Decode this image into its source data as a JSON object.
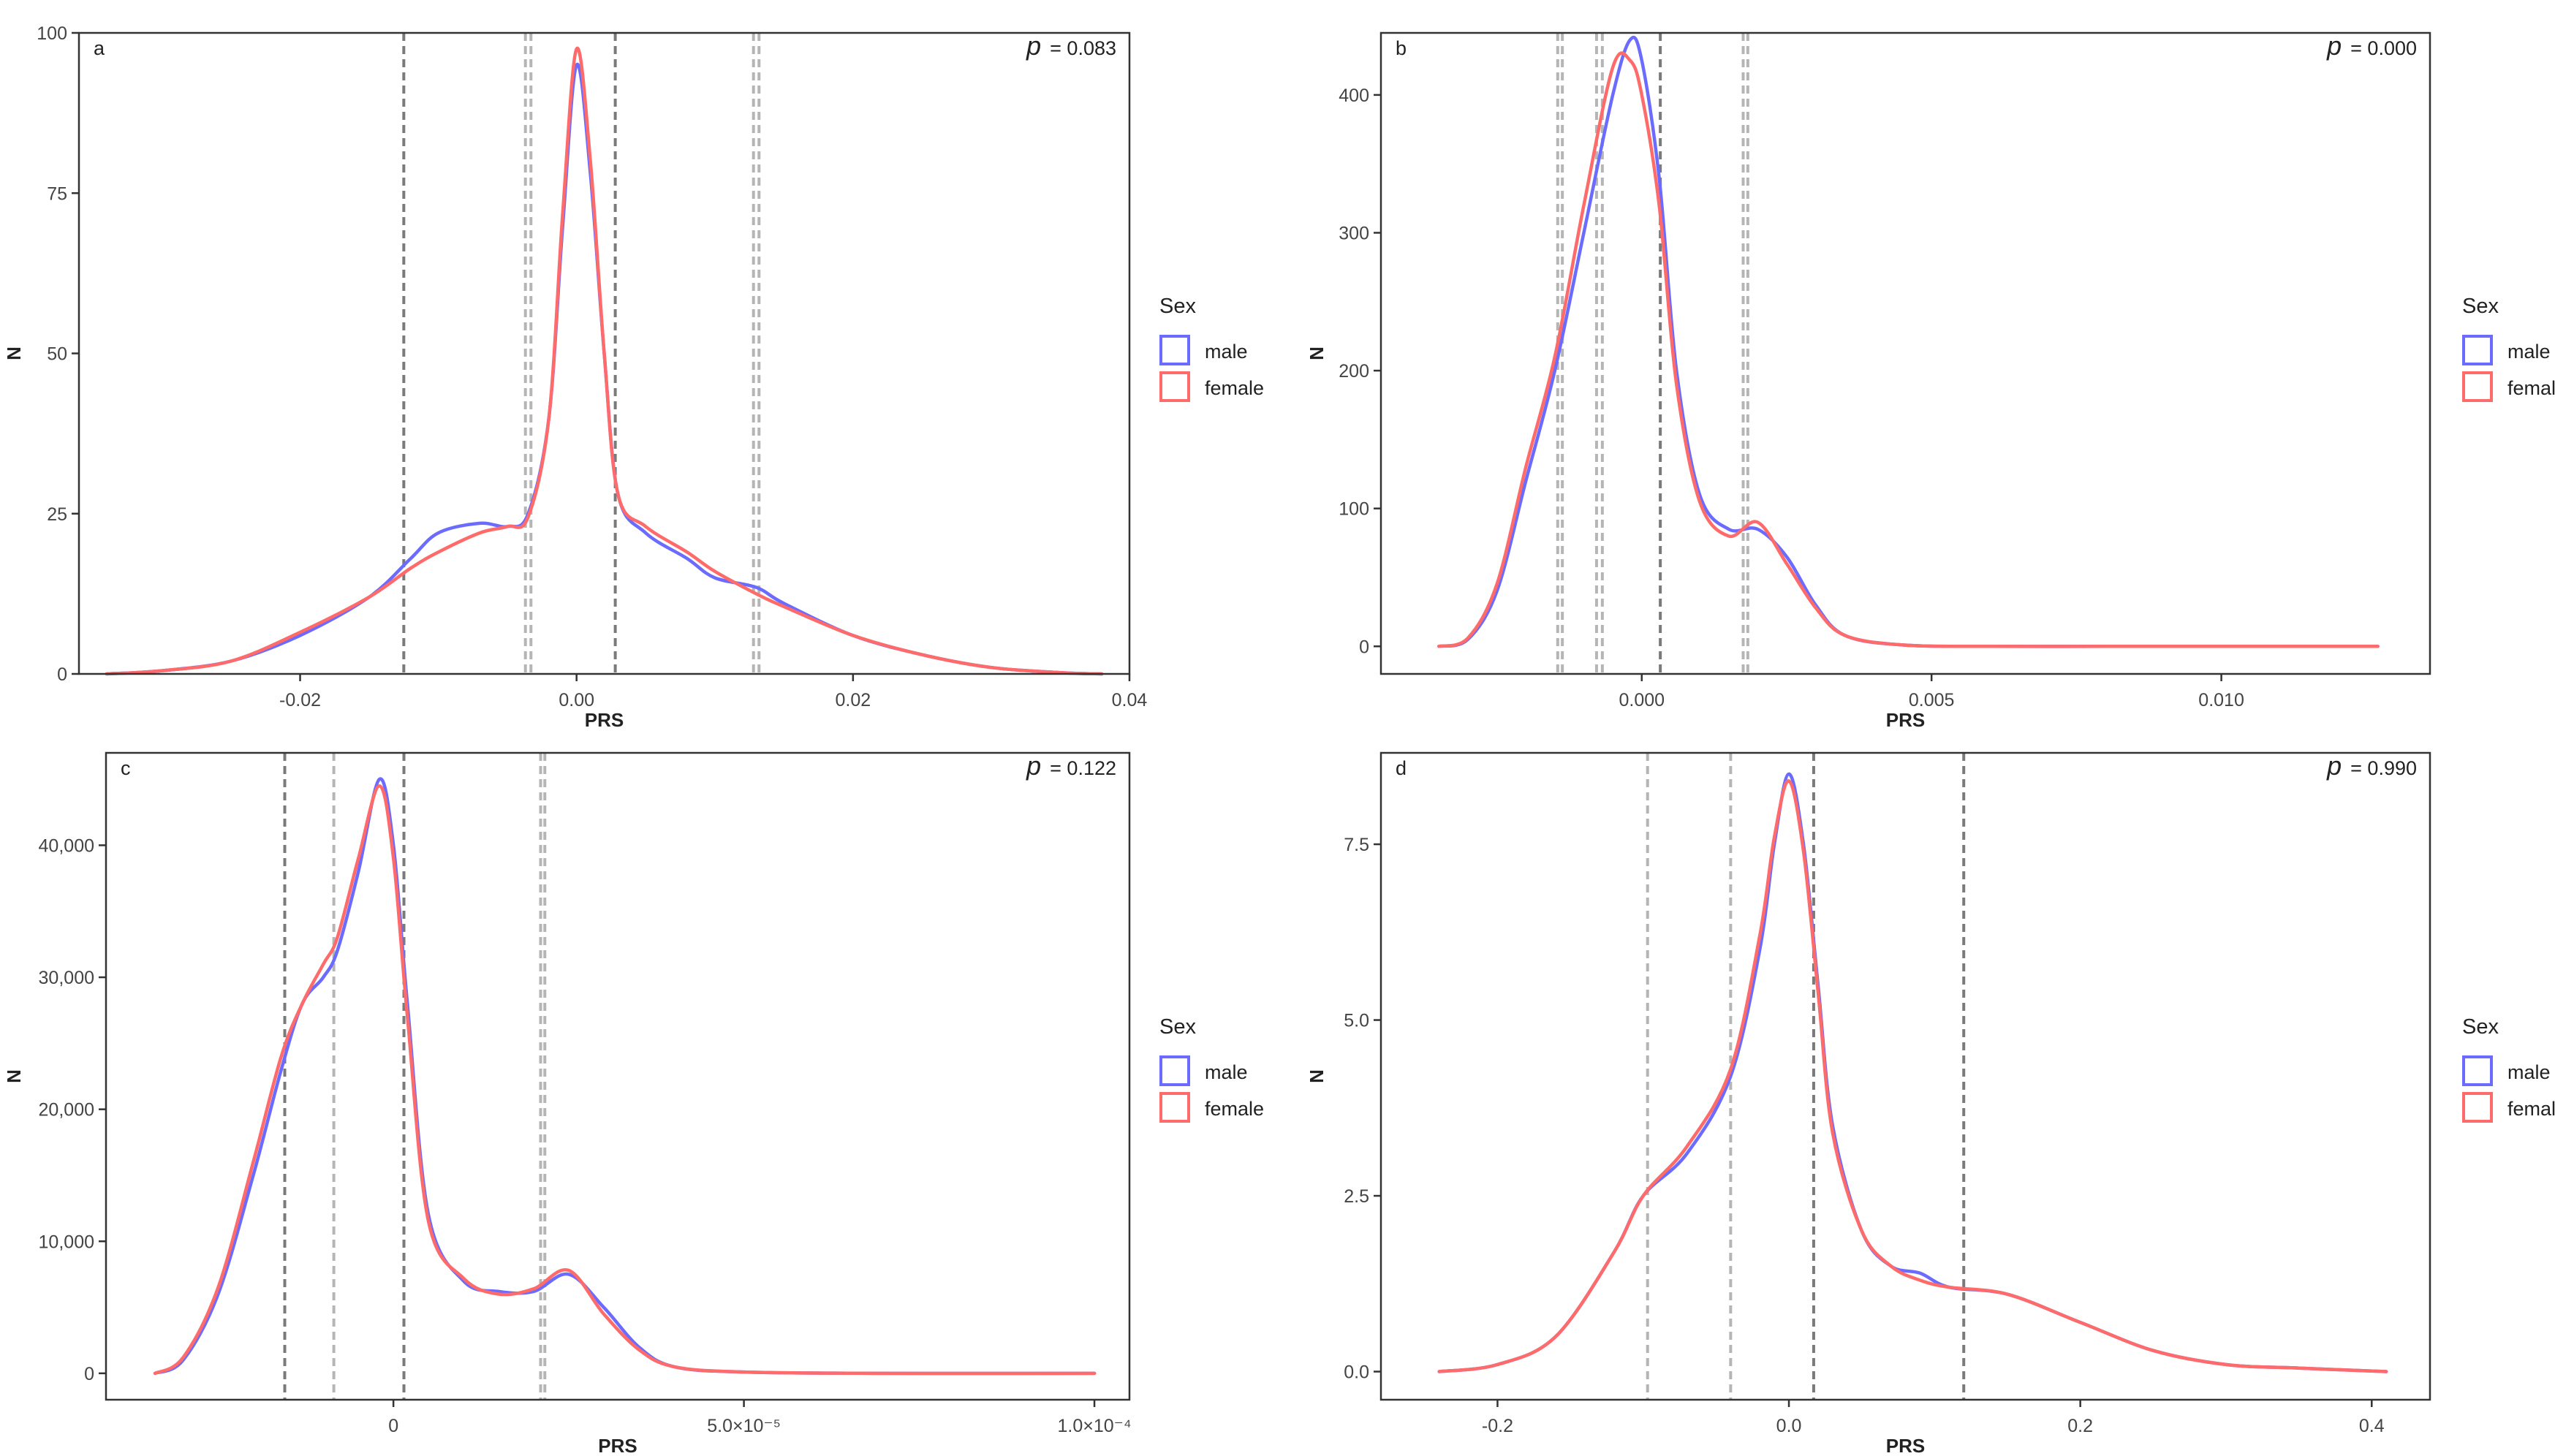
{
  "chart_data": [
    {
      "panel": "a",
      "type": "line",
      "p_label": "p",
      "p_value": "= 0.083",
      "xlabel": "PRS",
      "ylabel": "N",
      "xlim": [
        -0.036,
        0.04
      ],
      "ylim": [
        0,
        100
      ],
      "xticks": [
        -0.02,
        0.0,
        0.02,
        0.04
      ],
      "xtick_labels": [
        "-0.02",
        "0.00",
        "0.02",
        "0.04"
      ],
      "yticks": [
        0,
        25,
        50,
        75,
        100
      ],
      "ytick_labels": [
        "0",
        "25",
        "50",
        "75",
        "100"
      ],
      "vlines": [
        {
          "x": -0.0125,
          "style": "dark"
        },
        {
          "x": -0.0037,
          "style": "light"
        },
        {
          "x": -0.0033,
          "style": "light"
        },
        {
          "x": 0.0028,
          "style": "dark"
        },
        {
          "x": 0.0128,
          "style": "light"
        },
        {
          "x": 0.0132,
          "style": "light"
        }
      ],
      "series": [
        {
          "name": "male",
          "color": "#6b6bff",
          "x": [
            -0.034,
            -0.03,
            -0.025,
            -0.02,
            -0.015,
            -0.012,
            -0.01,
            -0.007,
            -0.005,
            -0.0035,
            -0.002,
            -0.001,
            0.0,
            0.001,
            0.002,
            0.003,
            0.005,
            0.008,
            0.01,
            0.013,
            0.015,
            0.02,
            0.025,
            0.03,
            0.035,
            0.038
          ],
          "y": [
            0,
            0.5,
            2,
            6,
            12,
            18,
            22,
            23.5,
            23,
            25,
            40,
            70,
            95,
            78,
            50,
            28,
            22,
            18,
            15,
            13.5,
            11,
            6,
            3,
            1,
            0.2,
            0
          ]
        },
        {
          "name": "female",
          "color": "#ff6b6b",
          "x": [
            -0.034,
            -0.03,
            -0.025,
            -0.02,
            -0.015,
            -0.012,
            -0.01,
            -0.007,
            -0.005,
            -0.0035,
            -0.002,
            -0.001,
            0.0,
            0.001,
            0.002,
            0.003,
            0.005,
            0.008,
            0.01,
            0.013,
            0.015,
            0.02,
            0.025,
            0.03,
            0.035,
            0.038
          ],
          "y": [
            0,
            0.5,
            2,
            6.5,
            12,
            16.5,
            19,
            22,
            23,
            24.5,
            40,
            72,
            97.5,
            80,
            50,
            28,
            23,
            19,
            16,
            12.5,
            10.5,
            6,
            3,
            1,
            0.2,
            0
          ]
        }
      ],
      "legend": {
        "title": "Sex",
        "entries": [
          "male",
          "female"
        ],
        "placement": "right"
      }
    },
    {
      "panel": "b",
      "type": "line",
      "p_label": "p",
      "p_value": "= 0.000",
      "xlabel": "PRS",
      "ylabel": "N",
      "xlim": [
        -0.0045,
        0.0136
      ],
      "ylim": [
        -20,
        445
      ],
      "xticks": [
        0.0,
        0.005,
        0.01
      ],
      "xtick_labels": [
        "0.000",
        "0.005",
        "0.010"
      ],
      "yticks": [
        0,
        100,
        200,
        300,
        400
      ],
      "ytick_labels": [
        "0",
        "100",
        "200",
        "300",
        "400"
      ],
      "vlines": [
        {
          "x": -0.00145,
          "style": "light"
        },
        {
          "x": -0.00137,
          "style": "light"
        },
        {
          "x": -0.00078,
          "style": "light"
        },
        {
          "x": -0.00068,
          "style": "light"
        },
        {
          "x": 0.00032,
          "style": "dark"
        },
        {
          "x": 0.00175,
          "style": "light"
        },
        {
          "x": 0.00183,
          "style": "light"
        }
      ],
      "series": [
        {
          "name": "male",
          "color": "#6b6bff",
          "x": [
            -0.0035,
            -0.003,
            -0.0025,
            -0.002,
            -0.0015,
            -0.001,
            -0.0005,
            -0.0002,
            0.0,
            0.0003,
            0.0006,
            0.001,
            0.0015,
            0.002,
            0.0025,
            0.003,
            0.0035,
            0.0045,
            0.006,
            0.008,
            0.01,
            0.0127
          ],
          "y": [
            0,
            5,
            40,
            120,
            200,
            300,
            400,
            440,
            425,
            340,
            200,
            110,
            85,
            85,
            65,
            30,
            8,
            1,
            0,
            0,
            0,
            0
          ]
        },
        {
          "name": "female",
          "color": "#ff6b6b",
          "x": [
            -0.0035,
            -0.003,
            -0.0025,
            -0.002,
            -0.0015,
            -0.001,
            -0.0005,
            -0.0002,
            0.0,
            0.0003,
            0.0006,
            0.001,
            0.0015,
            0.002,
            0.0025,
            0.003,
            0.0035,
            0.0045,
            0.006,
            0.008,
            0.01,
            0.0127
          ],
          "y": [
            0,
            6,
            45,
            130,
            210,
            320,
            420,
            425,
            400,
            320,
            190,
            105,
            80,
            90,
            60,
            28,
            8,
            1,
            0,
            0,
            0,
            0
          ]
        }
      ],
      "legend": {
        "title": "Sex",
        "entries": [
          "male",
          "female"
        ],
        "placement": "right"
      }
    },
    {
      "panel": "c",
      "type": "line",
      "p_label": "p",
      "p_value": "= 0.122",
      "xlabel": "PRS",
      "ylabel": "N",
      "xlim": [
        -4.1e-05,
        0.000105
      ],
      "ylim": [
        -2000,
        47000
      ],
      "xticks": [
        0,
        5e-05,
        0.0001
      ],
      "xtick_labels": [
        "0",
        "5.0×10⁻⁵",
        "1.0×10⁻⁴"
      ],
      "yticks": [
        0,
        10000,
        20000,
        30000,
        40000
      ],
      "ytick_labels": [
        "0",
        "10,000",
        "20,000",
        "30,000",
        "40,000"
      ],
      "vlines": [
        {
          "x": -1.55e-05,
          "style": "dark"
        },
        {
          "x": -8.5e-06,
          "style": "light"
        },
        {
          "x": 1.5e-06,
          "style": "dark"
        },
        {
          "x": 2.1e-05,
          "style": "light"
        },
        {
          "x": 2.16e-05,
          "style": "light"
        }
      ],
      "series": [
        {
          "name": "male",
          "color": "#6b6bff",
          "x": [
            -3.4e-05,
            -3e-05,
            -2.5e-05,
            -2e-05,
            -1.6e-05,
            -1.3e-05,
            -1e-05,
            -8e-06,
            -5e-06,
            -2e-06,
            0.0,
            2e-06,
            5e-06,
            1e-05,
            1.5e-05,
            2e-05,
            2.5e-05,
            3e-05,
            3.5e-05,
            4e-05,
            5e-05,
            7e-05,
            0.0001
          ],
          "y": [
            0,
            1000,
            6000,
            15000,
            23000,
            28000,
            30000,
            32000,
            38000,
            45000,
            40000,
            28000,
            12000,
            7000,
            6200,
            6200,
            7500,
            5000,
            2000,
            500,
            100,
            0,
            0
          ]
        },
        {
          "name": "female",
          "color": "#ff6b6b",
          "x": [
            -3.4e-05,
            -3e-05,
            -2.5e-05,
            -2e-05,
            -1.6e-05,
            -1.3e-05,
            -1e-05,
            -8e-06,
            -5e-06,
            -2e-06,
            0.0,
            2e-06,
            5e-06,
            1e-05,
            1.5e-05,
            2e-05,
            2.5e-05,
            3e-05,
            3.5e-05,
            4e-05,
            5e-05,
            7e-05,
            0.0001
          ],
          "y": [
            0,
            1200,
            6500,
            16000,
            24000,
            28000,
            31000,
            33000,
            39000,
            44500,
            39000,
            27000,
            11500,
            7200,
            6000,
            6400,
            7800,
            4500,
            1800,
            500,
            100,
            0,
            0
          ]
        }
      ],
      "legend": {
        "title": "Sex",
        "entries": [
          "male",
          "female"
        ],
        "placement": "right"
      }
    },
    {
      "panel": "d",
      "type": "line",
      "p_label": "p",
      "p_value": "= 0.990",
      "xlabel": "PRS",
      "ylabel": "N",
      "xlim": [
        -0.28,
        0.44
      ],
      "ylim": [
        -0.4,
        8.8
      ],
      "xticks": [
        -0.2,
        0.0,
        0.2,
        0.4
      ],
      "xtick_labels": [
        "-0.2",
        "0.0",
        "0.2",
        "0.4"
      ],
      "yticks": [
        0,
        2.5,
        5.0,
        7.5
      ],
      "ytick_labels": [
        "0.0",
        "2.5",
        "5.0",
        "7.5"
      ],
      "vlines": [
        {
          "x": -0.097,
          "style": "light"
        },
        {
          "x": -0.04,
          "style": "light"
        },
        {
          "x": 0.017,
          "style": "dark"
        },
        {
          "x": 0.12,
          "style": "dark"
        }
      ],
      "series": [
        {
          "name": "male",
          "color": "#6b6bff",
          "x": [
            -0.24,
            -0.2,
            -0.16,
            -0.12,
            -0.1,
            -0.07,
            -0.04,
            -0.02,
            -0.01,
            0.0,
            0.01,
            0.02,
            0.03,
            0.05,
            0.07,
            0.09,
            0.11,
            0.15,
            0.2,
            0.25,
            0.3,
            0.35,
            0.41
          ],
          "y": [
            0,
            0.1,
            0.5,
            1.7,
            2.5,
            3.1,
            4.2,
            6.0,
            7.5,
            8.5,
            7.5,
            5.5,
            3.5,
            2.0,
            1.5,
            1.4,
            1.2,
            1.1,
            0.7,
            0.3,
            0.1,
            0.05,
            0
          ]
        },
        {
          "name": "female",
          "color": "#ff6b6b",
          "x": [
            -0.24,
            -0.2,
            -0.16,
            -0.12,
            -0.1,
            -0.07,
            -0.04,
            -0.02,
            -0.01,
            0.0,
            0.01,
            0.02,
            0.03,
            0.05,
            0.07,
            0.09,
            0.11,
            0.15,
            0.2,
            0.25,
            0.3,
            0.35,
            0.41
          ],
          "y": [
            0,
            0.1,
            0.5,
            1.7,
            2.5,
            3.2,
            4.3,
            6.2,
            7.6,
            8.4,
            7.4,
            5.4,
            3.4,
            2.0,
            1.5,
            1.3,
            1.2,
            1.1,
            0.7,
            0.3,
            0.1,
            0.05,
            0
          ]
        }
      ],
      "legend": {
        "title": "Sex",
        "entries": [
          "male",
          "female"
        ],
        "placement": "right"
      }
    }
  ]
}
